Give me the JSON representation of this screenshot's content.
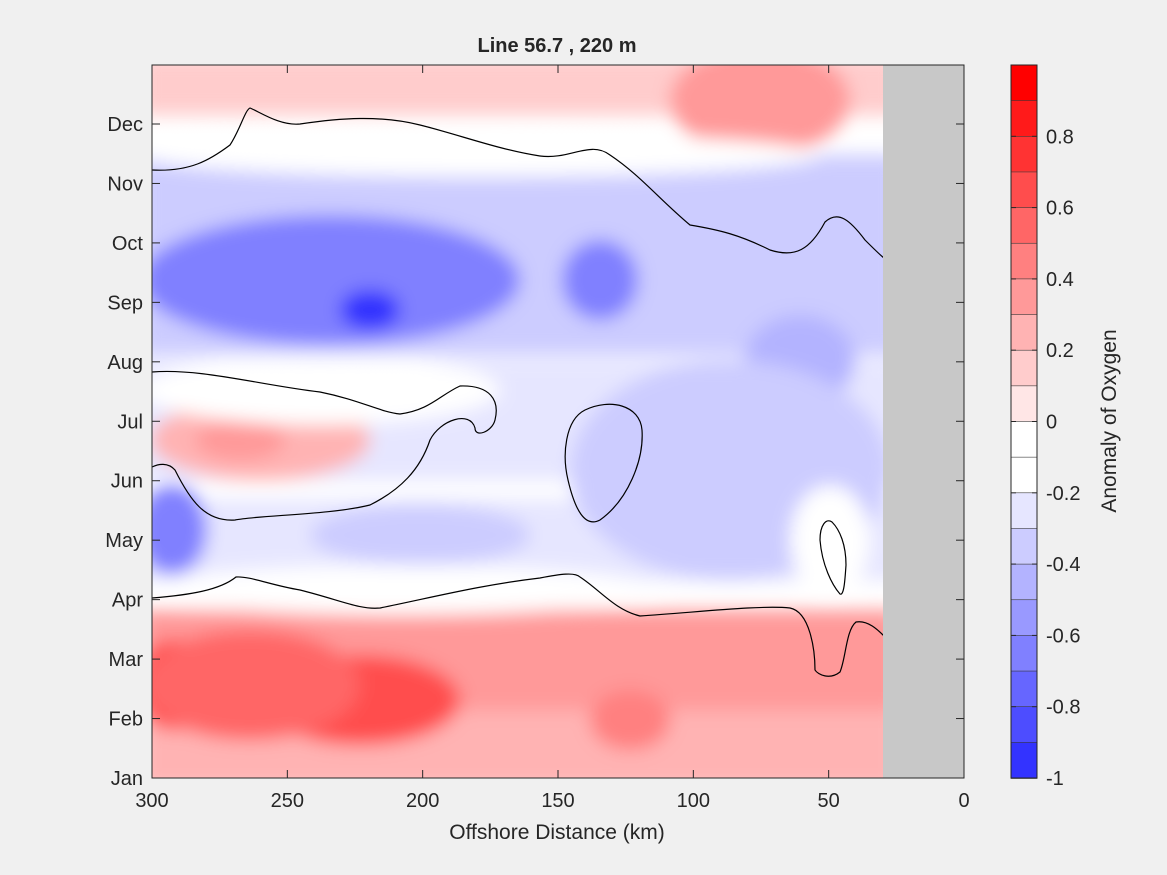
{
  "chart_data": {
    "type": "heatmap",
    "subtype": "filled-contour",
    "title": "Line 56.7 , 220 m",
    "xlabel": "Offshore Distance (km)",
    "ylabel": "",
    "xlim": [
      300,
      0
    ],
    "x_reversed": true,
    "x_ticks": [
      300,
      250,
      200,
      150,
      100,
      50,
      0
    ],
    "y_ticks": [
      "Jan",
      "Feb",
      "Mar",
      "Apr",
      "May",
      "Jun",
      "Jul",
      "Aug",
      "Sep",
      "Oct",
      "Nov",
      "Dec"
    ],
    "data_x_range": [
      300,
      30
    ],
    "no_data_region": {
      "x_from": 30,
      "x_to": 0,
      "color": "#c8c8c8"
    },
    "zero_contour_color": "#000000",
    "colorbar": {
      "label": "Anomaly of Oxygen",
      "range": [
        -1,
        1
      ],
      "tick_labels": [
        "0.8",
        "0.6",
        "0.4",
        "0.2",
        "0",
        "-0.2",
        "-0.4",
        "-0.6",
        "-0.8",
        "-1"
      ],
      "levels": [
        1.0,
        0.9,
        0.8,
        0.7,
        0.6,
        0.5,
        0.4,
        0.3,
        0.2,
        0.1,
        0.0,
        -0.1,
        -0.2,
        -0.3,
        -0.4,
        -0.5,
        -0.6,
        -0.7,
        -0.8,
        -0.9,
        -1.0
      ],
      "colors": [
        "#ff0000",
        "#ff1a1a",
        "#ff3333",
        "#ff4d4d",
        "#ff6666",
        "#ff8080",
        "#ff9999",
        "#ffb3b3",
        "#ffcccc",
        "#ffe6e6",
        "#ffffff",
        "#ffffff",
        "#e6e6ff",
        "#ccccff",
        "#b3b3ff",
        "#9999ff",
        "#8080ff",
        "#6666ff",
        "#4d4dff",
        "#3333ff",
        "#1a1aff",
        "#0000ff"
      ]
    },
    "grid": false,
    "anomaly_field": {
      "x_km": [
        300,
        275,
        250,
        225,
        200,
        175,
        150,
        125,
        100,
        75,
        50,
        30
      ],
      "months": [
        "Jan",
        "Feb",
        "Mar",
        "Apr",
        "May",
        "Jun",
        "Jul",
        "Aug",
        "Sep",
        "Oct",
        "Nov",
        "Dec"
      ],
      "values": [
        [
          0.3,
          0.4,
          0.4,
          0.4,
          0.4,
          0.4,
          0.3,
          0.3,
          0.3,
          0.3,
          0.3,
          0.3
        ],
        [
          0.7,
          0.6,
          0.6,
          0.6,
          0.7,
          0.5,
          0.4,
          0.4,
          0.3,
          0.3,
          0.2,
          0.2
        ],
        [
          0.8,
          0.6,
          0.5,
          0.5,
          0.5,
          0.4,
          0.3,
          0.3,
          0.2,
          0.2,
          0.1,
          0.1
        ],
        [
          0.05,
          0.05,
          0.1,
          0.05,
          0.0,
          0.0,
          0.0,
          0.0,
          0.0,
          0.0,
          0.0,
          0.0
        ],
        [
          -0.5,
          0.0,
          0.0,
          -0.1,
          -0.2,
          -0.2,
          -0.1,
          -0.2,
          -0.2,
          -0.2,
          0.0,
          -0.1
        ],
        [
          -0.3,
          0.0,
          0.1,
          0.1,
          0.0,
          -0.1,
          0.0,
          -0.1,
          -0.2,
          -0.2,
          -0.1,
          -0.1
        ],
        [
          0.2,
          0.3,
          0.3,
          0.2,
          0.1,
          0.0,
          0.0,
          0.1,
          -0.2,
          -0.2,
          -0.1,
          -0.1
        ],
        [
          -0.1,
          -0.2,
          -0.2,
          -0.1,
          -0.1,
          -0.1,
          -0.1,
          -0.2,
          -0.3,
          -0.3,
          -0.3,
          -0.2
        ],
        [
          -0.8,
          -0.7,
          -0.6,
          -0.5,
          -0.5,
          -0.4,
          -0.4,
          -0.4,
          -0.3,
          -0.3,
          -0.2,
          -0.2
        ],
        [
          -0.6,
          -0.6,
          -0.5,
          -0.5,
          -0.4,
          -0.4,
          -0.3,
          -0.3,
          -0.2,
          -0.1,
          0.0,
          0.0
        ],
        [
          -0.1,
          -0.1,
          -0.2,
          -0.2,
          -0.1,
          -0.1,
          -0.1,
          0.0,
          0.0,
          0.0,
          0.1,
          0.1
        ],
        [
          0.1,
          0.0,
          0.1,
          0.1,
          0.1,
          0.1,
          0.2,
          0.2,
          0.2,
          0.2,
          0.3,
          0.2
        ]
      ]
    }
  }
}
